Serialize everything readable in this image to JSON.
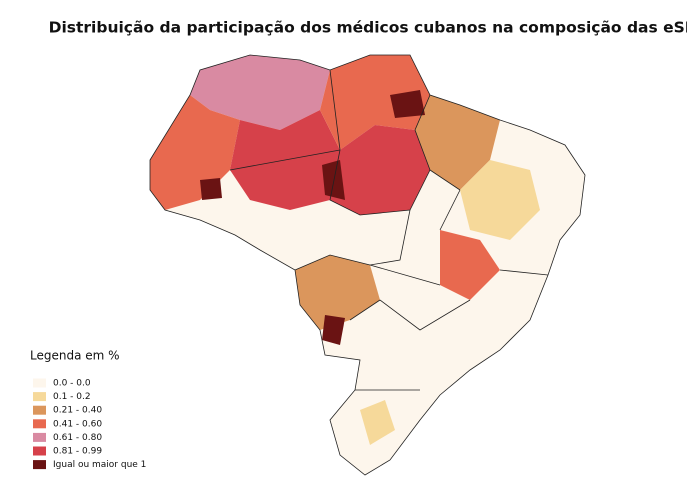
{
  "title": "Distribuição da participação dos médicos cubanos na composição das eSF",
  "legend": {
    "title": "Legenda em %",
    "items": [
      {
        "label": "0.0 - 0.0",
        "color": "#fdf6ec"
      },
      {
        "label": "0.1 - 0.2",
        "color": "#f6d99a"
      },
      {
        "label": "0.21 - 0.40",
        "color": "#db965c"
      },
      {
        "label": "0.41 - 0.60",
        "color": "#e8694f"
      },
      {
        "label": "0.61 - 0.80",
        "color": "#d98aa2"
      },
      {
        "label": "0.81 - 0.99",
        "color": "#d6414a"
      },
      {
        "label": "Igual ou maior que 1",
        "color": "#6a1313"
      }
    ]
  }
}
